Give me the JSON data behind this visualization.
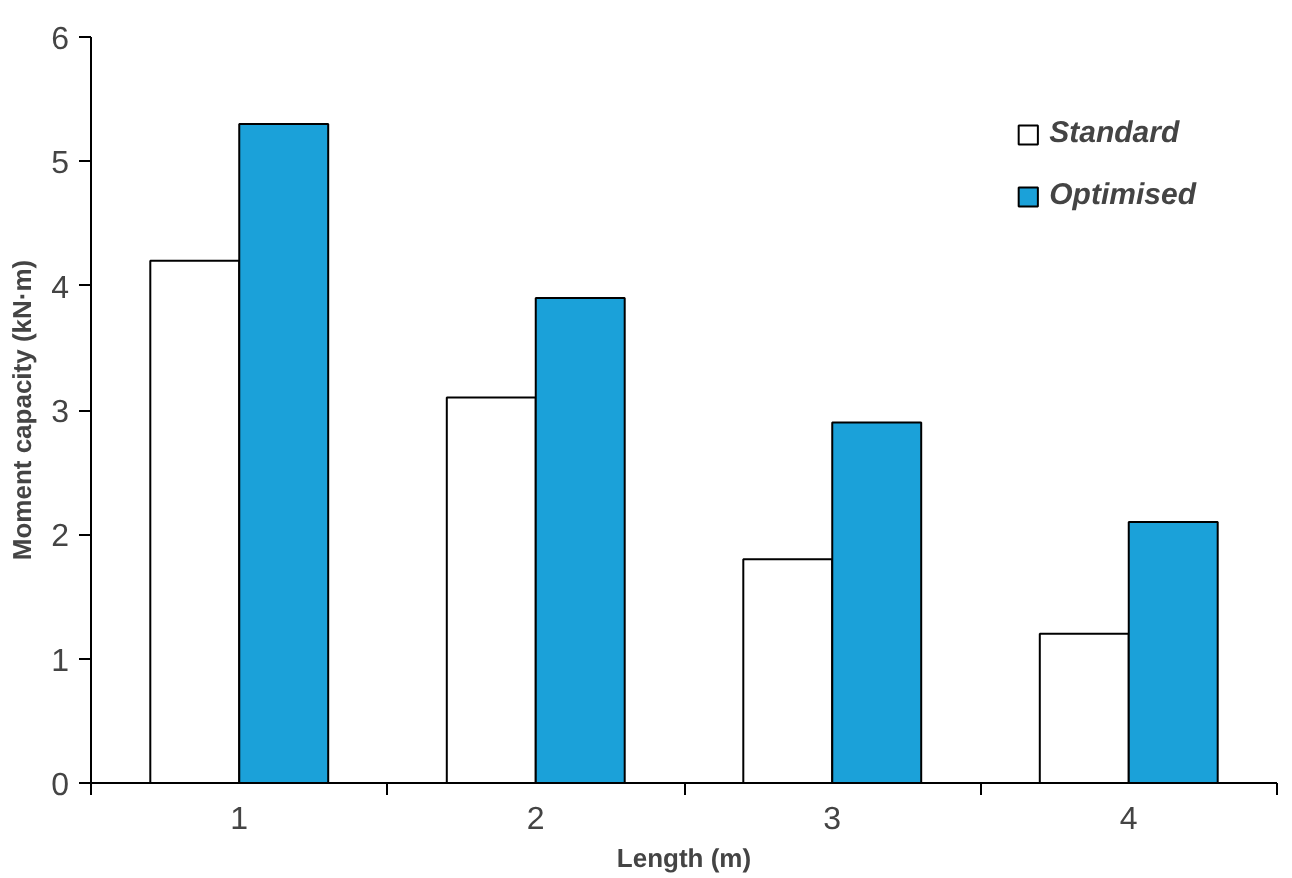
{
  "chart_data": {
    "type": "bar",
    "xlabel": "Length (m)",
    "ylabel": "Moment capacity (kN·m)",
    "categories": [
      "1",
      "2",
      "3",
      "4"
    ],
    "series": [
      {
        "name": "Standard",
        "color": "#ffffff",
        "values": [
          4.2,
          3.1,
          1.8,
          1.2
        ]
      },
      {
        "name": "Optimised",
        "color": "#1ba1d9",
        "values": [
          5.3,
          3.9,
          2.9,
          2.1
        ]
      }
    ],
    "ylim": [
      0,
      6
    ],
    "yticks": [
      0,
      1,
      2,
      3,
      4,
      5,
      6
    ],
    "grid": false,
    "legend": "top right"
  }
}
